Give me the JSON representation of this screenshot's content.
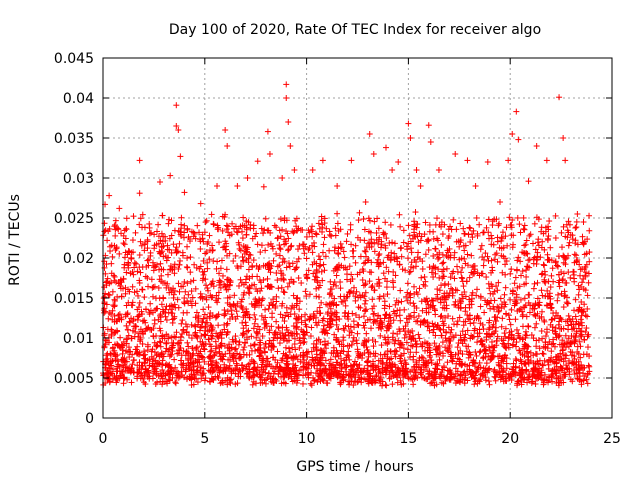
{
  "chart_data": {
    "type": "scatter",
    "title": "Day 100 of 2020, Rate Of TEC Index for receiver algo",
    "xlabel": "GPS time / hours",
    "ylabel": "ROTI / TECUs",
    "xlim": [
      0,
      25
    ],
    "ylim": [
      0,
      0.045
    ],
    "xticks": [
      "0",
      "5",
      "10",
      "15",
      "20",
      "25"
    ],
    "yticks": [
      "0",
      "0.005",
      "0.01",
      "0.015",
      "0.02",
      "0.025",
      "0.03",
      "0.035",
      "0.04",
      "0.045"
    ],
    "grid": true,
    "legend": "none",
    "marker": "plus",
    "color": "#ff0000",
    "x_range_data": [
      0,
      23.9
    ],
    "typical_band": [
      0.002,
      0.025
    ],
    "series": [
      {
        "points": [
          [
            0.1,
            0.0267
          ],
          [
            0.3,
            0.0278
          ],
          [
            0.8,
            0.0262
          ],
          [
            1.8,
            0.0322
          ],
          [
            1.8,
            0.0281
          ],
          [
            2.8,
            0.0295
          ],
          [
            3.3,
            0.0303
          ],
          [
            3.6,
            0.0391
          ],
          [
            3.6,
            0.0365
          ],
          [
            3.7,
            0.036
          ],
          [
            3.8,
            0.0327
          ],
          [
            4.0,
            0.0282
          ],
          [
            4.8,
            0.0268
          ],
          [
            5.6,
            0.029
          ],
          [
            6.0,
            0.036
          ],
          [
            6.1,
            0.034
          ],
          [
            6.6,
            0.029
          ],
          [
            7.1,
            0.03
          ],
          [
            7.6,
            0.0321
          ],
          [
            7.9,
            0.0289
          ],
          [
            8.1,
            0.0358
          ],
          [
            8.2,
            0.033
          ],
          [
            8.8,
            0.03
          ],
          [
            9.0,
            0.0417
          ],
          [
            9.0,
            0.04
          ],
          [
            9.1,
            0.037
          ],
          [
            9.2,
            0.034
          ],
          [
            9.4,
            0.031
          ],
          [
            10.3,
            0.031
          ],
          [
            10.8,
            0.0322
          ],
          [
            11.5,
            0.029
          ],
          [
            12.2,
            0.0322
          ],
          [
            12.9,
            0.027
          ],
          [
            13.1,
            0.0355
          ],
          [
            13.3,
            0.033
          ],
          [
            13.9,
            0.0338
          ],
          [
            14.2,
            0.031
          ],
          [
            14.5,
            0.032
          ],
          [
            15.0,
            0.0368
          ],
          [
            15.1,
            0.035
          ],
          [
            15.4,
            0.031
          ],
          [
            15.6,
            0.029
          ],
          [
            16.0,
            0.0366
          ],
          [
            16.1,
            0.0345
          ],
          [
            16.5,
            0.031
          ],
          [
            17.3,
            0.033
          ],
          [
            17.9,
            0.0322
          ],
          [
            18.3,
            0.029
          ],
          [
            18.9,
            0.032
          ],
          [
            19.5,
            0.027
          ],
          [
            19.9,
            0.0322
          ],
          [
            20.1,
            0.0355
          ],
          [
            20.3,
            0.0383
          ],
          [
            20.4,
            0.0348
          ],
          [
            20.9,
            0.0296
          ],
          [
            21.3,
            0.034
          ],
          [
            21.8,
            0.0322
          ],
          [
            22.4,
            0.0401
          ],
          [
            22.6,
            0.035
          ],
          [
            22.7,
            0.0322
          ],
          [
            23.3,
            0.0255
          ],
          [
            23.6,
            0.0245
          ]
        ]
      }
    ]
  }
}
